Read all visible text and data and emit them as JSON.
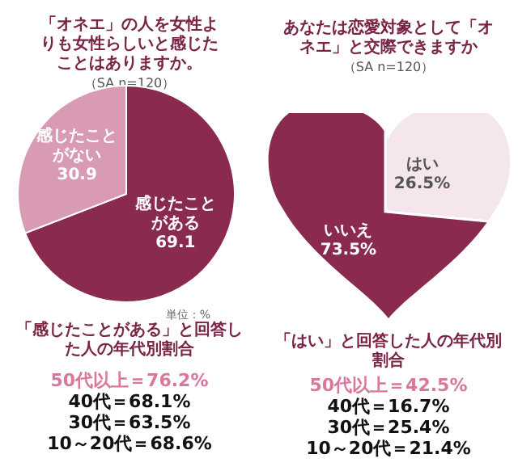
{
  "chart_data": [
    {
      "type": "pie",
      "title": "「オネエ」の人を女性よりも女性らしいと感じたことはありますか。",
      "subtitle": "（SA n=120）",
      "categories": [
        "感じたことがある",
        "感じたことがない"
      ],
      "values": [
        69.1,
        30.9
      ],
      "colors": [
        "#8a2a4f",
        "#d99bb4"
      ],
      "data_labels": true,
      "annotations": [
        "単位：%",
        "「感じたことがある」と回答した人の年代別割合",
        "50代以上＝76.2%",
        "40代＝68.1%",
        "30代＝63.5%",
        "10～20代＝68.6%"
      ]
    },
    {
      "type": "pie",
      "title": "あなたは恋愛対象として「オネエ」と交際できますか",
      "subtitle": "（SA n=120）",
      "categories": [
        "はい",
        "いいえ"
      ],
      "values": [
        26.5,
        73.5
      ],
      "colors": [
        "#f4e6ec",
        "#8a2a4f"
      ],
      "value_labels": [
        "26.5%",
        "73.5%"
      ],
      "annotations": [
        "「はい」と回答した人の年代別割合",
        "50代以上＝42.5%",
        "40代＝16.7%",
        "30代＝25.4%",
        "10～20代＝21.4%"
      ]
    }
  ]
}
